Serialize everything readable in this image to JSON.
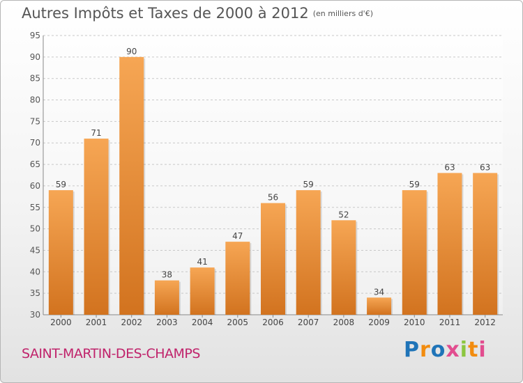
{
  "header": {
    "title": "Autres Impôts et Taxes de 2000 à 2012",
    "unit": "(en milliers d'€)"
  },
  "footer": {
    "commune": "SAINT-MARTIN-DES-CHAMPS",
    "logo": "Proxiti"
  },
  "colors": {
    "bar_top": "#f6a654",
    "bar_bottom": "#d2731f",
    "commune": "#c0236b",
    "logo_letters": [
      "#1f74b8",
      "#f28c0f",
      "#1f74b8",
      "#e24d8f",
      "#8cc63f",
      "#f28c0f",
      "#e24d8f"
    ]
  },
  "chart_data": {
    "type": "bar",
    "title": "Autres Impôts et Taxes de 2000 à 2012",
    "subtitle": "(en milliers d'€)",
    "categories": [
      "2000",
      "2001",
      "2002",
      "2003",
      "2004",
      "2005",
      "2006",
      "2007",
      "2008",
      "2009",
      "2010",
      "2011",
      "2012"
    ],
    "values": [
      59,
      71,
      90,
      38,
      41,
      47,
      56,
      59,
      52,
      34,
      59,
      63,
      63
    ],
    "data_labels": [
      "59",
      "71",
      "90",
      "38",
      "41",
      "47",
      "56",
      "59",
      "52",
      "34",
      "59",
      "63",
      "63"
    ],
    "ylim": [
      30,
      95
    ],
    "yticks": [
      30,
      35,
      40,
      45,
      50,
      55,
      60,
      65,
      70,
      75,
      80,
      85,
      90,
      95
    ],
    "grid": "horizontal dashed"
  }
}
